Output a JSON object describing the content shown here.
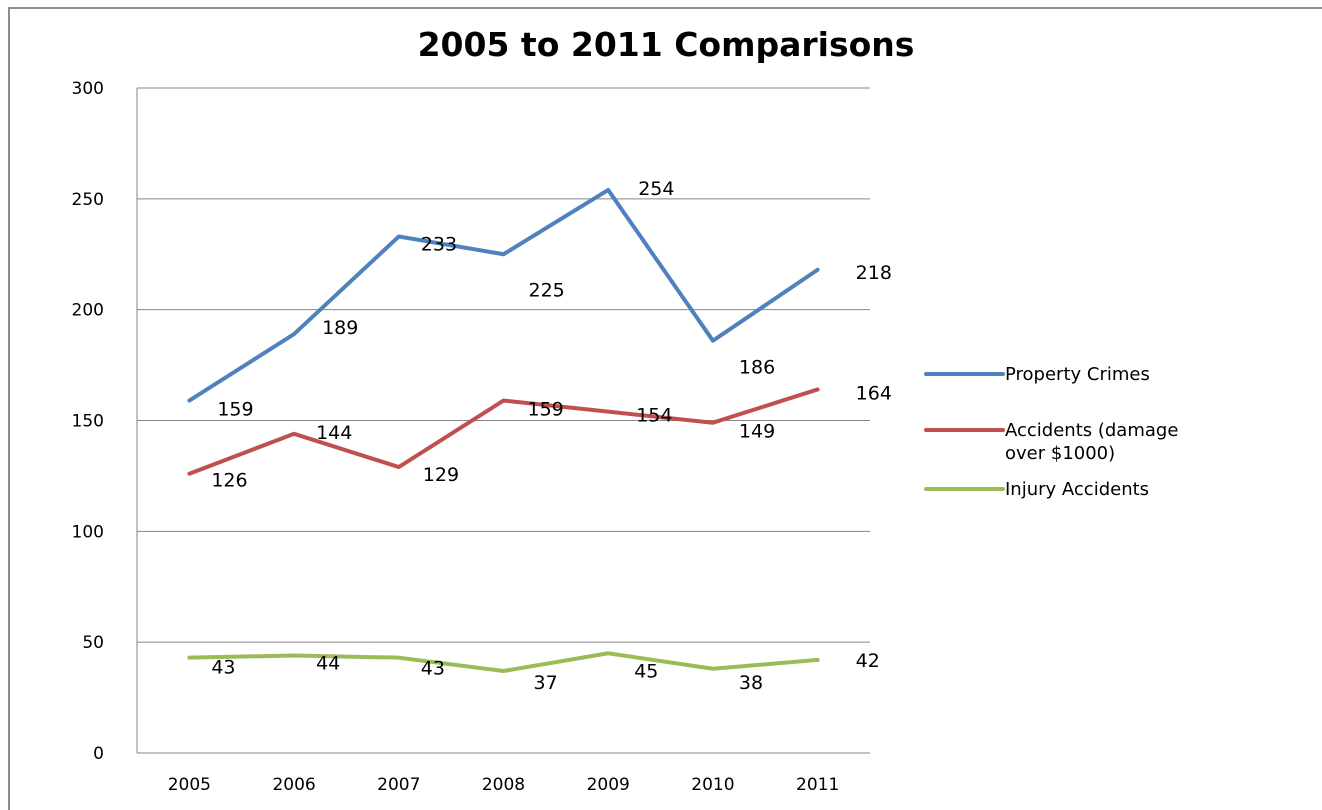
{
  "chart_data": {
    "type": "line",
    "title": "2005 to 2011 Comparisons",
    "xlabel": "",
    "ylabel": "",
    "categories": [
      "2005",
      "2006",
      "2007",
      "2008",
      "2009",
      "2010",
      "2011"
    ],
    "ylim": [
      0,
      300
    ],
    "yticks": [
      "0",
      "50",
      "100",
      "150",
      "200",
      "250",
      "300"
    ],
    "grid": "horizontal",
    "legend_position": "right",
    "series": [
      {
        "name": "Property Crimes",
        "legend_lines": [
          "Property Crimes"
        ],
        "color": "#4F81BD",
        "values": [
          159,
          189,
          233,
          225,
          254,
          186,
          218
        ],
        "labels": [
          "159",
          "189",
          "233",
          "225",
          "254",
          "186",
          "218"
        ]
      },
      {
        "name": "Accidents (damage over $1000)",
        "legend_lines": [
          "Accidents (damage",
          "over $1000)"
        ],
        "color": "#C0504D",
        "values": [
          126,
          144,
          129,
          159,
          154,
          149,
          164
        ],
        "labels": [
          "126",
          "144",
          "129",
          "159",
          "154",
          "149",
          "164"
        ]
      },
      {
        "name": "Injury Accidents",
        "legend_lines": [
          "Injury Accidents"
        ],
        "color": "#9BBB59",
        "values": [
          43,
          44,
          43,
          37,
          45,
          38,
          42
        ],
        "labels": [
          "43",
          "44",
          "43",
          "37",
          "45",
          "38",
          "42"
        ]
      }
    ]
  }
}
